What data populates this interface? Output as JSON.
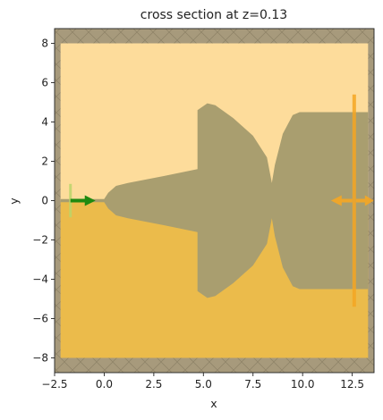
{
  "chart_data": {
    "type": "cross-section",
    "title": "cross section at z=0.13",
    "xlabel": "x",
    "ylabel": "y",
    "xlim": [
      -2.5,
      13.6
    ],
    "ylim": [
      -8.75,
      8.75
    ],
    "xticks": [
      -2.5,
      0.0,
      2.5,
      5.0,
      7.5,
      10.0,
      12.5
    ],
    "xtick_labels": [
      "−2.5",
      "0.0",
      "2.5",
      "5.0",
      "7.5",
      "10.0",
      "12.5"
    ],
    "yticks": [
      8,
      6,
      4,
      2,
      0,
      -2,
      -4,
      -6,
      -8
    ],
    "ytick_labels": [
      "8",
      "6",
      "4",
      "2",
      "0",
      "−2",
      "−4",
      "−6",
      "−8"
    ],
    "pml_band_width": 0.35,
    "simulation_domain": {
      "x": [
        -2.2,
        13.3
      ],
      "y": [
        -8.0,
        8.0
      ]
    },
    "upper_medium_color": "#fddc9b",
    "lower_medium_color": "#ebbb4b",
    "pml_color": "#a79a7c",
    "structure_color": "#a99e6f",
    "structure_outline": [
      [
        -2.2,
        0.08
      ],
      [
        0.0,
        0.08
      ],
      [
        0.2,
        0.4
      ],
      [
        0.6,
        0.75
      ],
      [
        1.2,
        0.9
      ],
      [
        3.0,
        1.25
      ],
      [
        4.7,
        1.6
      ],
      [
        4.7,
        4.6
      ],
      [
        5.2,
        4.95
      ],
      [
        5.6,
        4.85
      ],
      [
        6.5,
        4.2
      ],
      [
        7.5,
        3.3
      ],
      [
        8.2,
        2.2
      ],
      [
        8.45,
        0.9
      ],
      [
        8.6,
        1.8
      ],
      [
        9.0,
        3.4
      ],
      [
        9.5,
        4.35
      ],
      [
        9.85,
        4.5
      ],
      [
        13.3,
        4.5
      ],
      [
        13.3,
        -4.5
      ],
      [
        9.85,
        -4.5
      ],
      [
        9.5,
        -4.35
      ],
      [
        9.0,
        -3.4
      ],
      [
        8.6,
        -1.8
      ],
      [
        8.45,
        -0.9
      ],
      [
        8.2,
        -2.2
      ],
      [
        7.5,
        -3.3
      ],
      [
        6.5,
        -4.2
      ],
      [
        5.6,
        -4.85
      ],
      [
        5.2,
        -4.95
      ],
      [
        4.7,
        -4.6
      ],
      [
        4.7,
        -1.6
      ],
      [
        3.0,
        -1.25
      ],
      [
        1.2,
        -0.9
      ],
      [
        0.6,
        -0.75
      ],
      [
        0.2,
        -0.4
      ],
      [
        0.0,
        -0.08
      ],
      [
        -2.2,
        -0.08
      ]
    ],
    "source": {
      "x": -1.7,
      "y_span": [
        -0.85,
        0.85
      ],
      "direction": "+x",
      "color": "#1f8a10"
    },
    "monitor": {
      "x": 12.6,
      "y_span": [
        -5.4,
        5.4
      ],
      "direction": "±x",
      "color": "#f5a623"
    }
  }
}
